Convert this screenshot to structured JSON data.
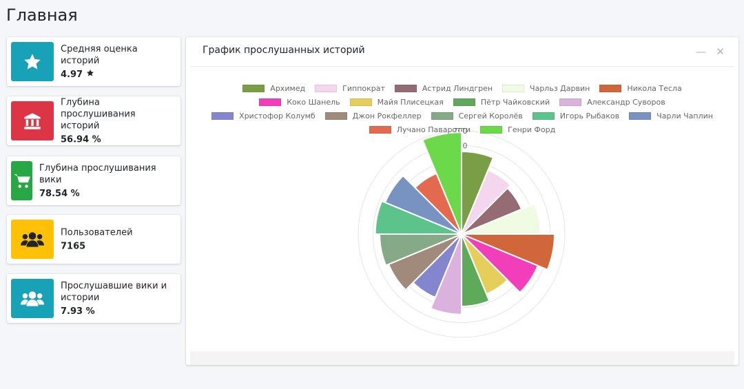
{
  "header": {
    "title": "Главная"
  },
  "cards": [
    {
      "label": "Средняя оценка историй",
      "value": "4.97"
    },
    {
      "label": "Глубина прослушивания историй",
      "value": "56.94 %"
    },
    {
      "label": "Глубина прослушивания вики",
      "value": "78.54 %"
    },
    {
      "label": "Пользователей",
      "value": "7165"
    },
    {
      "label": "Прослушавшие вики и истории",
      "value": "7.93 %"
    }
  ],
  "chart_data": {
    "type": "polarArea",
    "title": "График прослушанных историй",
    "categories": [
      "Архимед",
      "Гиппократ",
      "Астрид Линдгрен",
      "Чарльз Дарвин",
      "Никола Тесла",
      "Коко Шанель",
      "Майя Плисецкая",
      "Пётр Чайковский",
      "Александр Суворов",
      "Христофор Колумб",
      "Джон Рокфеллер",
      "Сергей Королёв",
      "Игорь Рыбаков",
      "Чарли Чаплин",
      "Лучано Паваротти",
      "Генри Форд"
    ],
    "values": [
      560,
      470,
      440,
      535,
      630,
      560,
      440,
      490,
      545,
      465,
      535,
      555,
      585,
      560,
      445,
      690
    ],
    "colors": [
      "#7a9e45",
      "#f4d6ef",
      "#956b74",
      "#effbe3",
      "#d0663a",
      "#f23fb9",
      "#e5cf5a",
      "#5eaa5a",
      "#dbb1dd",
      "#8486cd",
      "#a08a7c",
      "#86a987",
      "#5cc48b",
      "#7893c2",
      "#e3694f",
      "#6cd94b"
    ],
    "rlim": [
      0,
      700
    ],
    "rticks": [
      500,
      600,
      700
    ]
  }
}
